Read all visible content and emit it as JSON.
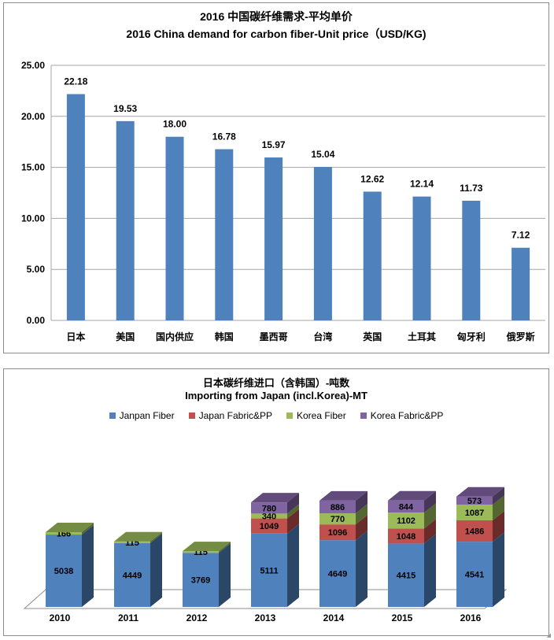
{
  "colors": {
    "bar": "#4f81bd",
    "japan_fiber": "#4f81bd",
    "japan_fabric": "#c0504d",
    "korea_fiber": "#9bbb59",
    "korea_fabric": "#8064a2"
  },
  "chart_data": [
    {
      "type": "bar",
      "title": "2016 中国碳纤维需求-平均单价",
      "subtitle": "2016 China demand for carbon fiber-Unit price（USD/KG)",
      "categories": [
        "日本",
        "美国",
        "国内供应",
        "韩国",
        "墨西哥",
        "台湾",
        "英国",
        "土耳其",
        "匈牙利",
        "俄罗斯"
      ],
      "values": [
        22.18,
        19.53,
        18.0,
        16.78,
        15.97,
        15.04,
        12.62,
        12.14,
        11.73,
        7.12
      ],
      "value_labels": [
        "22.18",
        "19.53",
        "18.00",
        "16.78",
        "15.97",
        "15.04",
        "12.62",
        "12.14",
        "11.73",
        "7.12"
      ],
      "ylim": [
        0,
        25
      ],
      "yticks": [
        "0.00",
        "5.00",
        "10.00",
        "15.00",
        "20.00",
        "25.00"
      ],
      "grid": true,
      "xlabel": "",
      "ylabel": ""
    },
    {
      "type": "bar",
      "stacked": true,
      "title": "日本碳纤维进口（含韩国）-吨数",
      "subtitle": "Importing from Japan (incl.Korea)-MT",
      "categories": [
        "2010",
        "2011",
        "2012",
        "2013",
        "2014",
        "2015",
        "2016"
      ],
      "series": [
        {
          "name": "Janpan Fiber",
          "values": [
            5038,
            4449,
            3769,
            5111,
            4649,
            4415,
            4541
          ]
        },
        {
          "name": "Japan Fabric&PP",
          "values": [
            0,
            0,
            0,
            1049,
            1096,
            1048,
            1486
          ]
        },
        {
          "name": "Korea Fiber",
          "values": [
            166,
            115,
            115,
            340,
            770,
            1102,
            1087
          ]
        },
        {
          "name": "Korea Fabric&PP",
          "values": [
            0,
            0,
            0,
            780,
            886,
            844,
            573
          ]
        }
      ],
      "legend_position": "top",
      "grid": false,
      "xlabel": "",
      "ylabel": ""
    }
  ]
}
